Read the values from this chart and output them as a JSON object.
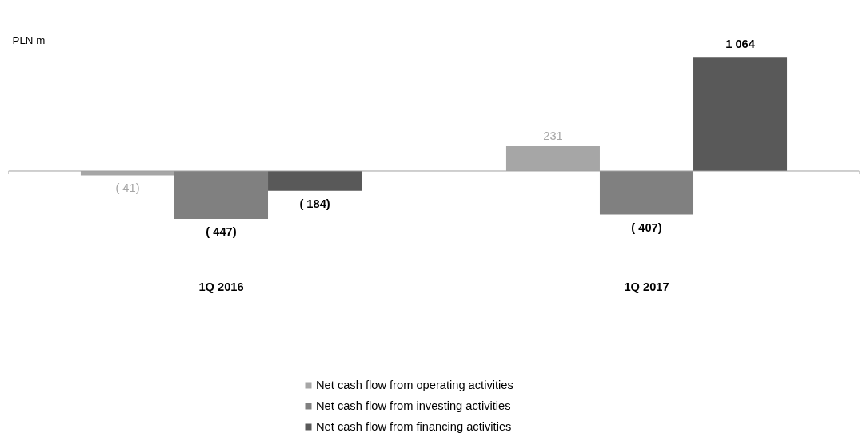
{
  "chart_data": {
    "type": "bar",
    "ylabel": "PLN m",
    "categories": [
      "1Q 2016",
      "1Q 2017"
    ],
    "series": [
      {
        "name": "Net cash flow from operating activities",
        "color": "#a6a6a6",
        "values": [
          -41,
          231
        ],
        "value_labels": [
          "( 41)",
          "231"
        ]
      },
      {
        "name": "Net cash flow from investing activities",
        "color": "#808080",
        "values": [
          -447,
          -407
        ],
        "value_labels": [
          "( 447)",
          "( 407)"
        ]
      },
      {
        "name": "Net cash flow from financing activities",
        "color": "#595959",
        "values": [
          -184,
          1064
        ],
        "value_labels": [
          "( 184)",
          "1 064"
        ]
      }
    ],
    "legend": "bottom",
    "grid": false
  }
}
